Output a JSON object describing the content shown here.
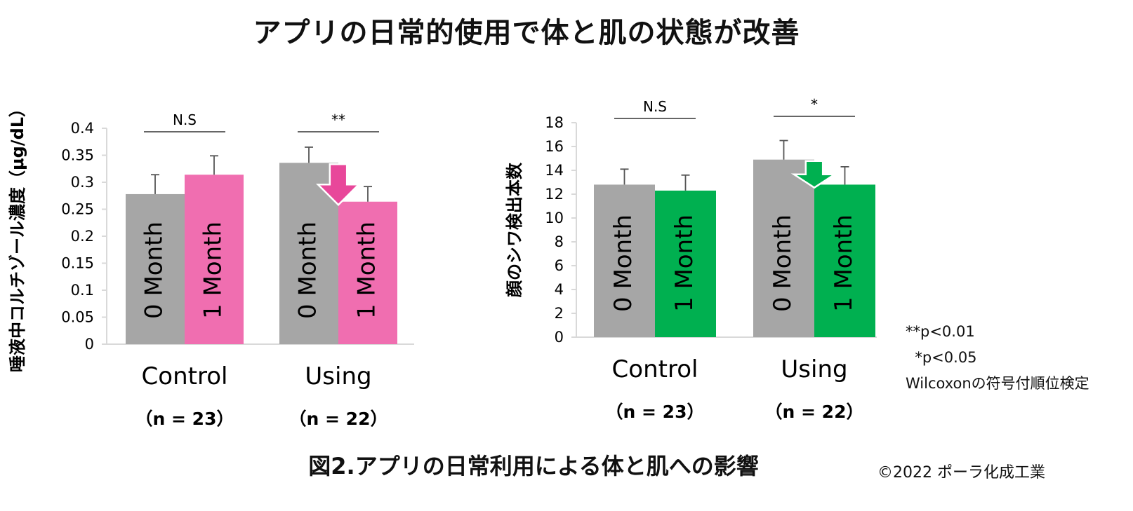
{
  "page": {
    "title": "アプリの日常的使用で体と肌の状態が改善",
    "caption": "図2.アプリの日常利用による体と肌への影響",
    "copyright": "©2022 ポーラ化成工業",
    "notes": [
      "**p<0.01",
      "  *p<0.05",
      "Wilcoxonの符号付順位検定"
    ]
  },
  "colors": {
    "gray": "#a6a6a6",
    "pink": "#f06eb0",
    "pink_arrow": "#e8479a",
    "green": "#00b050",
    "axis": "#d9d9d9",
    "text": "#111111"
  },
  "chart_data": [
    {
      "type": "bar",
      "ylabel": "唾液中コルチゾール濃度（μg/dL）",
      "ylim": [
        0,
        0.4
      ],
      "yticks": [
        "0",
        "0.05",
        "0.1",
        "0.15",
        "0.2",
        "0.25",
        "0.3",
        "0.35",
        "0.4"
      ],
      "categories": [
        "Control",
        "Using"
      ],
      "category_n": [
        "（n = 23）",
        "（n = 22）"
      ],
      "significance": [
        "N.S",
        "**"
      ],
      "series": [
        {
          "name": "0 Month",
          "color": "#a6a6a6",
          "values": [
            0.278,
            0.336
          ],
          "errors": [
            0.036,
            0.029
          ]
        },
        {
          "name": "1 Month",
          "color": "#f06eb0",
          "values": [
            0.314,
            0.264
          ],
          "errors": [
            0.035,
            0.028
          ]
        }
      ],
      "arrow_color": "#e8479a",
      "grid": false
    },
    {
      "type": "bar",
      "ylabel": "顔のシワ検出本数",
      "ylim": [
        0,
        18
      ],
      "yticks": [
        "0",
        "2",
        "4",
        "6",
        "8",
        "10",
        "12",
        "14",
        "16",
        "18"
      ],
      "categories": [
        "Control",
        "Using"
      ],
      "category_n": [
        "（n = 23）",
        "（n = 22）"
      ],
      "significance": [
        "N.S",
        "*"
      ],
      "series": [
        {
          "name": "0 Month",
          "color": "#a6a6a6",
          "values": [
            12.8,
            14.9
          ],
          "errors": [
            1.3,
            1.6
          ]
        },
        {
          "name": "1 Month",
          "color": "#00b050",
          "values": [
            12.3,
            12.8
          ],
          "errors": [
            1.3,
            1.5
          ]
        }
      ],
      "arrow_color": "#00b050",
      "grid": false
    }
  ]
}
